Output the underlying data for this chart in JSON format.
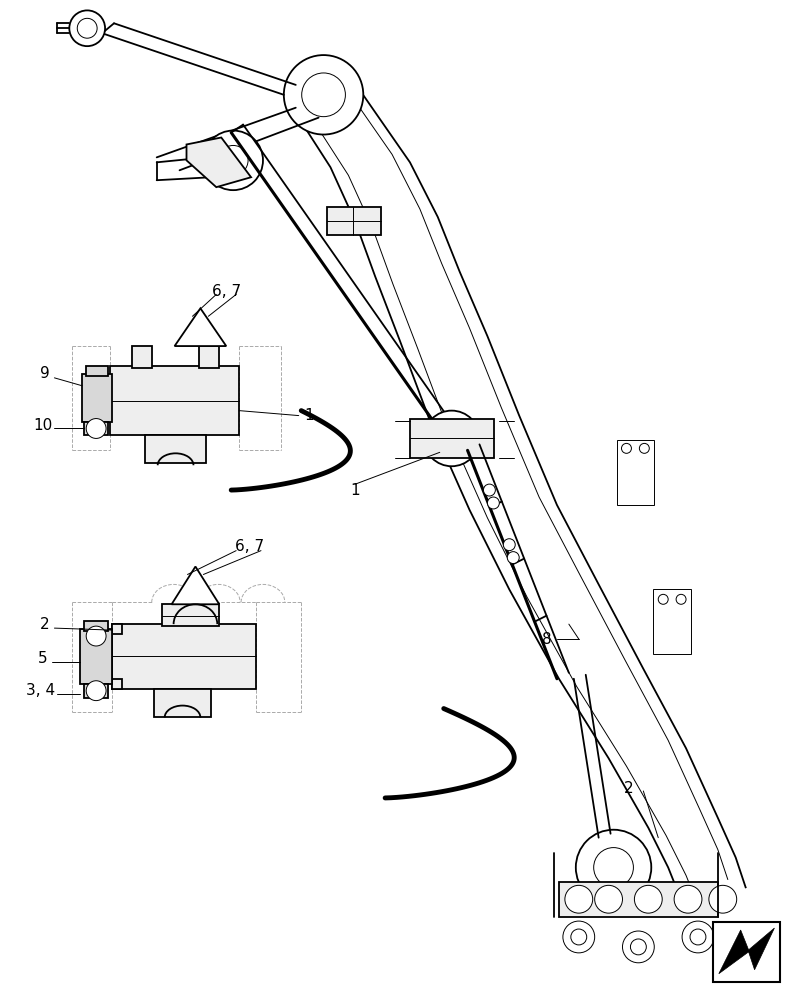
{
  "bg_color": "#ffffff",
  "line_color": "#000000",
  "dashed_color": "#aaaaaa",
  "gray_fill": "#d8d8d8",
  "light_fill": "#eeeeee",
  "figsize": [
    8.08,
    10.0
  ],
  "dpi": 100,
  "lw_main": 1.3,
  "lw_thick": 2.2,
  "lw_thin": 0.7,
  "fs_label": 11
}
